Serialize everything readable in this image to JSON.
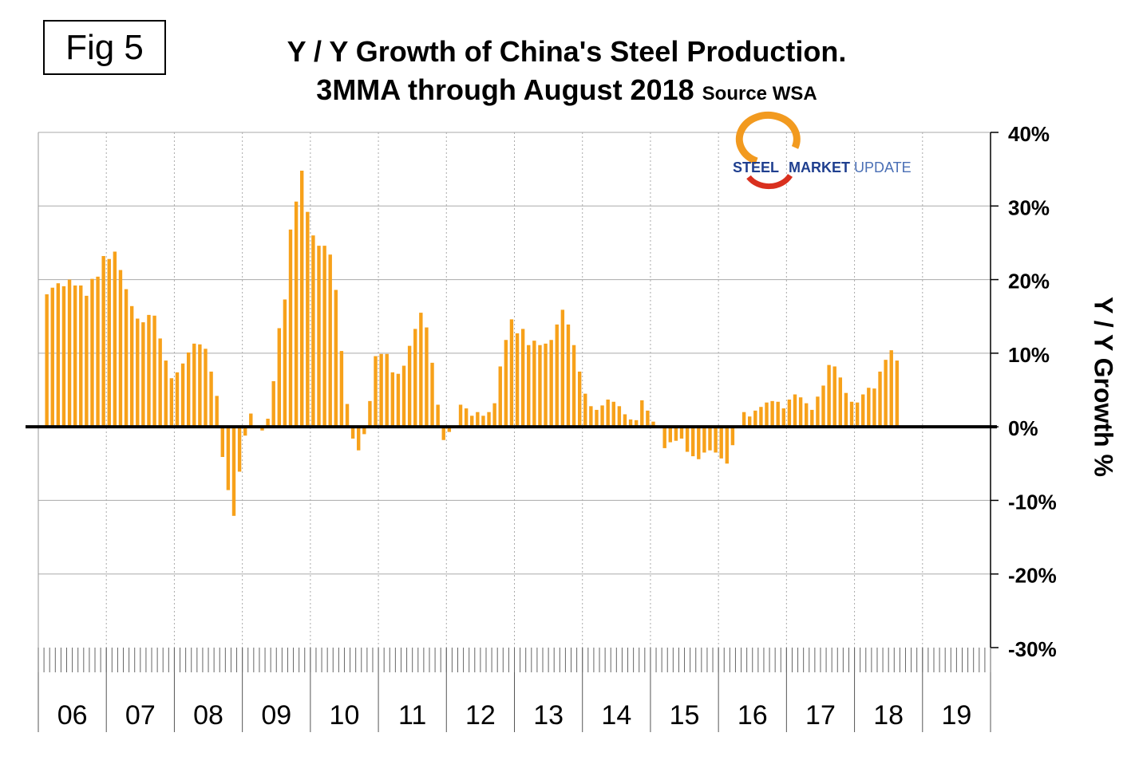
{
  "figure_label": "Fig 5",
  "title_line1": "Y / Y Growth of China's Steel Production.",
  "title_line2": "3MMA through August 2018",
  "source_note": "Source WSA",
  "logo": {
    "text_bold": "STEEL",
    "text_mid": "MARKET",
    "text_light": "UPDATE",
    "colors": {
      "steel": "#1f3f8f",
      "market": "#1f3f8f",
      "update": "#4a6fb5",
      "swoosh_red": "#d9301e",
      "swoosh_orange": "#f29a1f"
    }
  },
  "colors": {
    "bar": "#f7a11a",
    "bar_edge": "#e08a00",
    "zero_line": "#000000",
    "grid": "#aaaaaa"
  },
  "chart_data": {
    "type": "bar",
    "title": "Y / Y Growth of China's Steel Production. 3MMA through August 2018",
    "ylabel": "Y / Y Growth %",
    "ylim": [
      -30,
      40
    ],
    "y_ticks": [
      "40%",
      "30%",
      "20%",
      "10%",
      "0%",
      "-10%",
      "-20%",
      "-30%"
    ],
    "y_tick_values": [
      40,
      30,
      20,
      10,
      0,
      -10,
      -20,
      -30
    ],
    "year_labels": [
      "06",
      "07",
      "08",
      "09",
      "10",
      "11",
      "12",
      "13",
      "14",
      "15",
      "16",
      "17",
      "18",
      "19"
    ],
    "x_start": "2006-01",
    "frequency": "monthly",
    "grid": "horizontal and vertical dashed at year boundaries",
    "values": [
      18.0,
      18.9,
      19.5,
      19.1,
      20.0,
      19.2,
      19.2,
      17.8,
      20.1,
      20.4,
      23.2,
      22.8,
      23.8,
      21.3,
      18.7,
      16.4,
      14.7,
      14.2,
      15.2,
      15.1,
      12.0,
      9.0,
      6.6,
      7.4,
      8.6,
      10.1,
      11.3,
      11.2,
      10.6,
      7.5,
      4.2,
      -4.1,
      -8.6,
      -12.1,
      -6.1,
      -1.2,
      1.8,
      0.0,
      -0.5,
      1.1,
      6.2,
      13.4,
      17.3,
      26.8,
      30.6,
      34.8,
      29.2,
      26.0,
      24.6,
      24.6,
      23.4,
      18.6,
      10.3,
      3.1,
      -1.6,
      -3.2,
      -1.0,
      3.5,
      9.6,
      9.9,
      9.9,
      7.4,
      7.2,
      8.3,
      11.0,
      13.3,
      15.5,
      13.5,
      8.7,
      3.0,
      -1.8,
      -0.7,
      0.0,
      3.0,
      2.5,
      1.5,
      2.0,
      1.5,
      2.0,
      3.2,
      8.2,
      11.8,
      14.6,
      12.7,
      13.3,
      11.1,
      11.7,
      11.1,
      11.3,
      11.8,
      13.9,
      15.9,
      13.9,
      11.1,
      7.5,
      4.5,
      2.8,
      2.3,
      2.9,
      3.7,
      3.4,
      2.8,
      1.7,
      1.0,
      0.9,
      3.6,
      2.2,
      0.7,
      0.0,
      -2.9,
      -2.1,
      -1.9,
      -1.6,
      -3.4,
      -4.0,
      -4.4,
      -3.5,
      -3.2,
      -3.5,
      -4.3,
      -5.0,
      -2.5,
      0.0,
      2.0,
      1.4,
      2.2,
      2.7,
      3.3,
      3.5,
      3.4,
      2.5,
      3.7,
      4.4,
      4.0,
      3.2,
      2.3,
      4.1,
      5.6,
      8.4,
      8.2,
      6.7,
      4.6,
      3.4,
      3.3,
      4.4,
      5.3,
      5.2,
      7.5,
      9.1,
      10.4,
      9.0
    ]
  }
}
